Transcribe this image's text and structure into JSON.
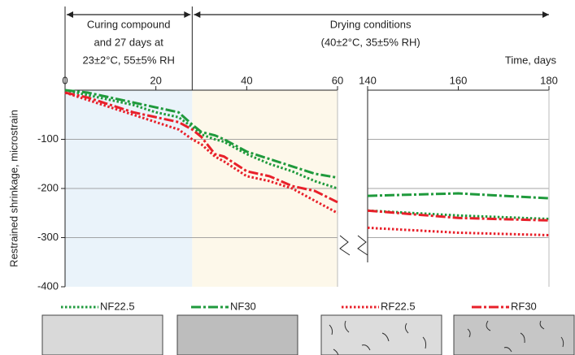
{
  "chart_data": {
    "type": "line",
    "ylabel": "Restrained shrinkage, microstrain",
    "xlabel": "Time, days",
    "ylim": [
      0,
      -400
    ],
    "yticks": [
      -100,
      -200,
      -300,
      -400
    ],
    "grid": true,
    "panels": [
      {
        "xlim": [
          0,
          60
        ],
        "xticks": [
          0,
          20,
          40,
          60
        ]
      },
      {
        "xlim": [
          140,
          180
        ],
        "xticks": [
          140,
          160,
          180
        ]
      }
    ],
    "phases": [
      {
        "label": [
          "Curing compound",
          "and 27 days at",
          "23±2°C, 55±5% RH"
        ],
        "start": 0,
        "end": 28,
        "color": "#eaf3fa"
      },
      {
        "label": [
          "Drying conditions",
          "(40±2°C, 35±5% RH)"
        ],
        "start": 28,
        "end": 180,
        "color": "#fdf8ea"
      }
    ],
    "x": [
      0,
      5,
      10,
      15,
      20,
      25,
      28,
      30,
      33,
      35,
      40,
      45,
      50,
      55,
      60,
      140,
      160,
      180
    ],
    "series": [
      {
        "name": "NF22.5",
        "color": "#1f9a3c",
        "style": "dotted",
        "values": [
          0,
          -10,
          -20,
          -30,
          -45,
          -55,
          -75,
          -90,
          -100,
          -105,
          -130,
          -150,
          -165,
          -185,
          -200,
          -245,
          -255,
          -262
        ]
      },
      {
        "name": "NF30",
        "color": "#1f9a3c",
        "style": "dashdot",
        "values": [
          0,
          -5,
          -15,
          -25,
          -35,
          -45,
          -70,
          -85,
          -92,
          -100,
          -125,
          -140,
          -155,
          -170,
          -178,
          -215,
          -210,
          -220
        ]
      },
      {
        "name": "RF22.5",
        "color": "#e8202a",
        "style": "dotted",
        "values": [
          -5,
          -20,
          -35,
          -50,
          -65,
          -80,
          -100,
          -110,
          -135,
          -145,
          -175,
          -185,
          -200,
          -225,
          -250,
          -280,
          -290,
          -295
        ]
      },
      {
        "name": "RF30",
        "color": "#e8202a",
        "style": "dashdot",
        "values": [
          -5,
          -15,
          -30,
          -45,
          -55,
          -65,
          -80,
          -95,
          -130,
          -135,
          -165,
          -175,
          -195,
          -205,
          -228,
          -245,
          -260,
          -265
        ]
      }
    ]
  }
}
